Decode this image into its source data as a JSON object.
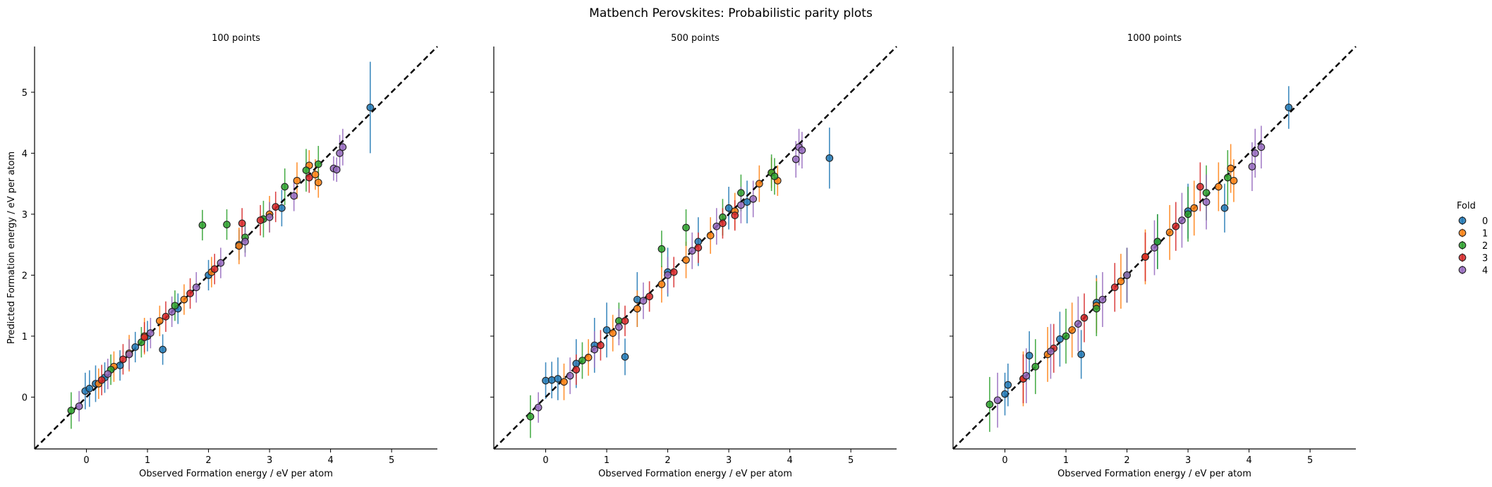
{
  "suptitle": "Matbench Perovskites: Probabilistic parity plots",
  "legend": {
    "title": "Fold",
    "items": [
      {
        "label": "0",
        "color": "#1f77b4"
      },
      {
        "label": "1",
        "color": "#ff7f0e"
      },
      {
        "label": "2",
        "color": "#2ca02c"
      },
      {
        "label": "3",
        "color": "#d62728"
      },
      {
        "label": "4",
        "color": "#9467bd"
      }
    ],
    "placement": "right"
  },
  "chart_data": [
    {
      "type": "scatter",
      "title": "100 points",
      "xlabel": "Observed Formation energy / eV per atom",
      "ylabel": "Predicted Formation energy / eV per atom",
      "xlim": [
        -0.85,
        5.75
      ],
      "ylim": [
        -0.85,
        5.75
      ],
      "xticks": [
        "0",
        "1",
        "2",
        "3",
        "4",
        "5"
      ],
      "yticks": [
        "0",
        "1",
        "2",
        "3",
        "4",
        "5"
      ],
      "parity_line": true,
      "error_bars": "vertical",
      "series": [
        {
          "name": "0",
          "x": [
            -0.02,
            0.05,
            0.15,
            0.3,
            0.55,
            0.8,
            1.0,
            1.25,
            1.5,
            2.0,
            2.5,
            3.2,
            4.65
          ],
          "y": [
            0.1,
            0.14,
            0.22,
            0.32,
            0.52,
            0.82,
            1.0,
            0.78,
            1.45,
            2.0,
            2.5,
            3.1,
            4.75
          ],
          "err": [
            0.3,
            0.3,
            0.3,
            0.25,
            0.25,
            0.25,
            0.25,
            0.25,
            0.25,
            0.25,
            0.25,
            0.3,
            0.75
          ]
        },
        {
          "name": "1",
          "x": [
            0.2,
            0.45,
            0.7,
            0.95,
            1.2,
            1.6,
            2.05,
            2.5,
            3.0,
            3.45,
            3.65,
            3.75,
            3.8
          ],
          "y": [
            0.22,
            0.5,
            0.72,
            1.0,
            1.25,
            1.6,
            2.05,
            2.48,
            3.0,
            3.55,
            3.8,
            3.65,
            3.52
          ],
          "err": [
            0.25,
            0.25,
            0.3,
            0.3,
            0.25,
            0.25,
            0.25,
            0.3,
            0.3,
            0.3,
            0.25,
            0.25,
            0.25
          ]
        },
        {
          "name": "2",
          "x": [
            -0.25,
            0.4,
            0.9,
            1.45,
            1.9,
            2.3,
            2.6,
            2.9,
            3.25,
            3.6,
            3.8
          ],
          "y": [
            -0.22,
            0.45,
            0.9,
            1.5,
            2.82,
            2.83,
            2.62,
            2.92,
            3.45,
            3.72,
            3.82
          ],
          "err": [
            0.3,
            0.25,
            0.25,
            0.25,
            0.25,
            0.25,
            0.25,
            0.3,
            0.3,
            0.35,
            0.3
          ]
        },
        {
          "name": "3",
          "x": [
            0.25,
            0.6,
            0.95,
            1.3,
            1.7,
            2.1,
            2.55,
            2.85,
            3.1,
            3.65
          ],
          "y": [
            0.28,
            0.62,
            0.98,
            1.32,
            1.7,
            2.1,
            2.85,
            2.9,
            3.12,
            3.6
          ],
          "err": [
            0.25,
            0.25,
            0.25,
            0.25,
            0.25,
            0.25,
            0.25,
            0.25,
            0.25,
            0.25
          ]
        },
        {
          "name": "4",
          "x": [
            -0.12,
            0.35,
            0.7,
            1.05,
            1.4,
            1.8,
            2.2,
            2.6,
            3.0,
            3.4,
            4.05,
            4.1,
            4.15,
            4.2
          ],
          "y": [
            -0.15,
            0.38,
            0.7,
            1.05,
            1.4,
            1.8,
            2.2,
            2.55,
            2.95,
            3.3,
            3.75,
            3.73,
            4.0,
            4.1
          ],
          "err": [
            0.25,
            0.25,
            0.25,
            0.25,
            0.25,
            0.25,
            0.25,
            0.25,
            0.25,
            0.25,
            0.2,
            0.2,
            0.3,
            0.3
          ]
        }
      ]
    },
    {
      "type": "scatter",
      "title": "500 points",
      "xlabel": "Observed Formation energy / eV per atom",
      "ylabel": "",
      "xlim": [
        -0.85,
        5.75
      ],
      "ylim": [
        -0.85,
        5.75
      ],
      "xticks": [
        "0",
        "1",
        "2",
        "3",
        "4",
        "5"
      ],
      "yticks": [
        "0",
        "1",
        "2",
        "3",
        "4",
        "5"
      ],
      "parity_line": true,
      "error_bars": "vertical",
      "series": [
        {
          "name": "0",
          "x": [
            0.0,
            0.1,
            0.2,
            0.5,
            0.8,
            1.0,
            1.3,
            1.5,
            2.0,
            2.5,
            3.0,
            3.3,
            4.65
          ],
          "y": [
            0.27,
            0.28,
            0.3,
            0.55,
            0.85,
            1.1,
            0.66,
            1.6,
            2.05,
            2.55,
            3.1,
            3.2,
            3.92
          ],
          "err": [
            0.3,
            0.3,
            0.35,
            0.4,
            0.45,
            0.45,
            0.3,
            0.45,
            0.4,
            0.4,
            0.35,
            0.35,
            0.5
          ]
        },
        {
          "name": "1",
          "x": [
            0.3,
            0.7,
            1.1,
            1.5,
            1.9,
            2.3,
            2.7,
            3.1,
            3.5,
            3.7,
            3.8
          ],
          "y": [
            0.25,
            0.65,
            1.05,
            1.45,
            1.85,
            2.25,
            2.65,
            3.05,
            3.5,
            3.68,
            3.55
          ],
          "err": [
            0.3,
            0.3,
            0.3,
            0.3,
            0.3,
            0.3,
            0.3,
            0.3,
            0.3,
            0.25,
            0.25
          ]
        },
        {
          "name": "2",
          "x": [
            -0.25,
            0.6,
            1.2,
            1.9,
            2.3,
            2.9,
            3.2,
            3.7,
            3.75
          ],
          "y": [
            -0.32,
            0.6,
            1.25,
            2.43,
            2.78,
            2.95,
            3.35,
            3.68,
            3.62
          ],
          "err": [
            0.35,
            0.3,
            0.3,
            0.3,
            0.3,
            0.3,
            0.3,
            0.3,
            0.3
          ]
        },
        {
          "name": "3",
          "x": [
            0.5,
            0.9,
            1.3,
            1.7,
            2.1,
            2.5,
            2.9,
            3.1
          ],
          "y": [
            0.45,
            0.85,
            1.25,
            1.65,
            2.05,
            2.45,
            2.85,
            2.98
          ],
          "err": [
            0.25,
            0.25,
            0.25,
            0.25,
            0.25,
            0.25,
            0.25,
            0.25
          ]
        },
        {
          "name": "4",
          "x": [
            -0.12,
            0.4,
            0.8,
            1.2,
            1.6,
            2.0,
            2.4,
            2.8,
            3.2,
            3.4,
            4.1,
            4.15,
            4.2
          ],
          "y": [
            -0.17,
            0.35,
            0.78,
            1.15,
            1.58,
            2.0,
            2.4,
            2.8,
            3.15,
            3.25,
            3.9,
            4.1,
            4.05
          ],
          "err": [
            0.25,
            0.3,
            0.3,
            0.3,
            0.3,
            0.3,
            0.3,
            0.3,
            0.3,
            0.3,
            0.3,
            0.3,
            0.3
          ]
        }
      ]
    },
    {
      "type": "scatter",
      "title": "1000 points",
      "xlabel": "Observed Formation energy / eV per atom",
      "ylabel": "",
      "xlim": [
        -0.85,
        5.75
      ],
      "ylim": [
        -0.85,
        5.75
      ],
      "xticks": [
        "0",
        "1",
        "2",
        "3",
        "4",
        "5"
      ],
      "yticks": [
        "0",
        "1",
        "2",
        "3",
        "4",
        "5"
      ],
      "parity_line": true,
      "error_bars": "vertical",
      "series": [
        {
          "name": "0",
          "x": [
            0.0,
            0.05,
            0.4,
            0.9,
            1.25,
            1.5,
            2.0,
            2.5,
            3.0,
            3.6,
            4.65
          ],
          "y": [
            0.05,
            0.2,
            0.68,
            0.95,
            0.7,
            1.55,
            2.0,
            2.55,
            3.05,
            3.1,
            4.75
          ],
          "err": [
            0.35,
            0.35,
            0.4,
            0.45,
            0.4,
            0.45,
            0.45,
            0.45,
            0.45,
            0.4,
            0.35
          ]
        },
        {
          "name": "1",
          "x": [
            0.3,
            0.7,
            1.1,
            1.5,
            1.9,
            2.3,
            2.7,
            3.1,
            3.5,
            3.7,
            3.75
          ],
          "y": [
            0.3,
            0.7,
            1.1,
            1.5,
            1.9,
            2.3,
            2.7,
            3.1,
            3.45,
            3.75,
            3.55
          ],
          "err": [
            0.45,
            0.45,
            0.45,
            0.45,
            0.45,
            0.45,
            0.45,
            0.45,
            0.4,
            0.4,
            0.35
          ]
        },
        {
          "name": "2",
          "x": [
            -0.25,
            0.5,
            1.0,
            1.5,
            2.0,
            2.5,
            3.0,
            3.3,
            3.65
          ],
          "y": [
            -0.12,
            0.5,
            1.0,
            1.45,
            2.0,
            2.55,
            3.0,
            3.35,
            3.6
          ],
          "err": [
            0.45,
            0.45,
            0.45,
            0.45,
            0.45,
            0.45,
            0.45,
            0.45,
            0.45
          ]
        },
        {
          "name": "3",
          "x": [
            0.3,
            0.8,
            1.3,
            1.8,
            2.3,
            2.8,
            3.2
          ],
          "y": [
            0.3,
            0.8,
            1.3,
            1.8,
            2.3,
            2.8,
            3.45
          ],
          "err": [
            0.4,
            0.4,
            0.4,
            0.4,
            0.4,
            0.4,
            0.4
          ]
        },
        {
          "name": "4",
          "x": [
            -0.12,
            0.35,
            0.75,
            1.2,
            1.6,
            2.0,
            2.45,
            2.9,
            3.3,
            4.05,
            4.1,
            4.2
          ],
          "y": [
            -0.05,
            0.35,
            0.75,
            1.2,
            1.6,
            2.0,
            2.45,
            2.9,
            3.2,
            3.78,
            4.0,
            4.1
          ],
          "err": [
            0.45,
            0.45,
            0.45,
            0.45,
            0.45,
            0.45,
            0.45,
            0.45,
            0.45,
            0.4,
            0.4,
            0.35
          ]
        }
      ]
    }
  ]
}
